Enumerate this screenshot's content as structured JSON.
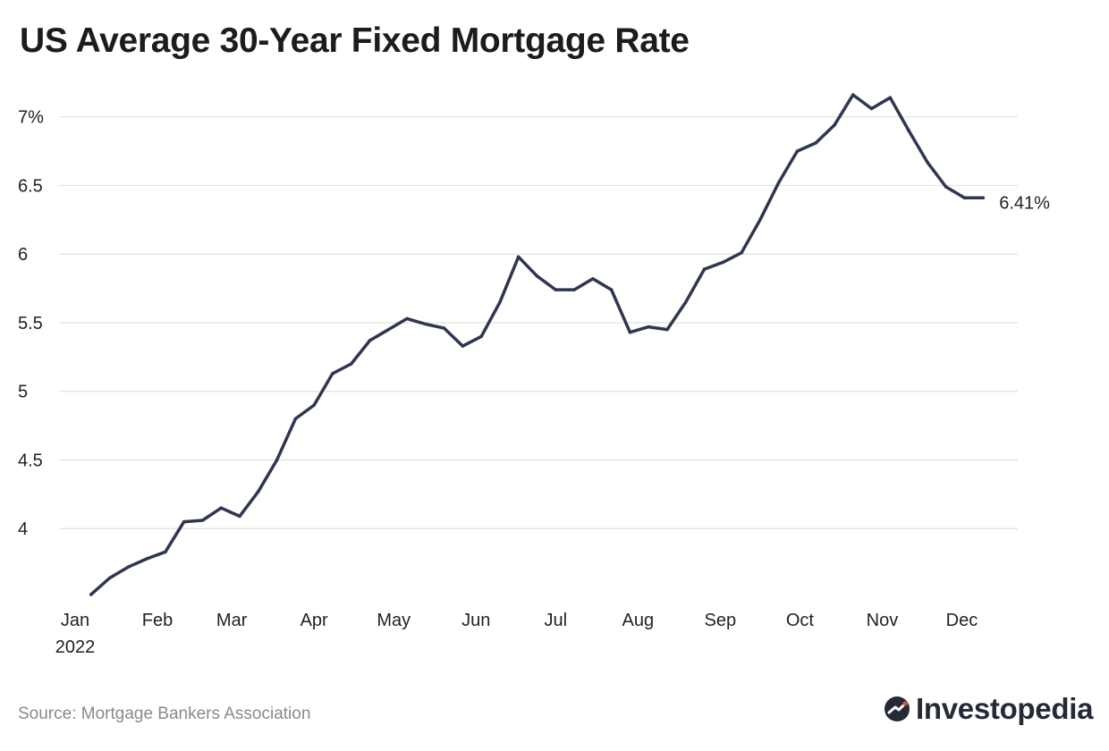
{
  "title": "US Average 30-Year Fixed Mortgage Rate",
  "source": "Source: Mortgage Bankers Association",
  "brand": {
    "name": "Investopedia",
    "icon": "investopedia-logo-icon"
  },
  "colors": {
    "line": "#2f3650",
    "grid": "#e1e1e1",
    "text": "#222222",
    "source": "#8a8a8a"
  },
  "chart_data": {
    "type": "line",
    "title": "US Average 30-Year Fixed Mortgage Rate",
    "xlabel": "",
    "ylabel": "",
    "ylim": [
      3.5,
      7.2
    ],
    "yticks": [
      {
        "value": 4,
        "label": "4"
      },
      {
        "value": 4.5,
        "label": "4.5"
      },
      {
        "value": 5,
        "label": "5"
      },
      {
        "value": 5.5,
        "label": "5.5"
      },
      {
        "value": 6,
        "label": "6"
      },
      {
        "value": 6.5,
        "label": "6.5"
      },
      {
        "value": 7,
        "label": "7%"
      }
    ],
    "xlim": [
      "2022-01-01",
      "2022-12-16"
    ],
    "xticks": [
      {
        "date": "2022-01-01",
        "label": "Jan",
        "sublabel": "2022"
      },
      {
        "date": "2022-02-01",
        "label": "Feb"
      },
      {
        "date": "2022-03-01",
        "label": "Mar"
      },
      {
        "date": "2022-04-01",
        "label": "Apr"
      },
      {
        "date": "2022-05-01",
        "label": "May"
      },
      {
        "date": "2022-06-01",
        "label": "Jun"
      },
      {
        "date": "2022-07-01",
        "label": "Jul"
      },
      {
        "date": "2022-08-01",
        "label": "Aug"
      },
      {
        "date": "2022-09-01",
        "label": "Sep"
      },
      {
        "date": "2022-10-01",
        "label": "Oct"
      },
      {
        "date": "2022-11-01",
        "label": "Nov"
      },
      {
        "date": "2022-12-01",
        "label": "Dec"
      }
    ],
    "grid": true,
    "end_label": "6.41%",
    "series": [
      {
        "x": [
          "2022-01-07",
          "2022-01-14",
          "2022-01-21",
          "2022-01-28",
          "2022-02-04",
          "2022-02-11",
          "2022-02-18",
          "2022-02-25",
          "2022-03-04",
          "2022-03-11",
          "2022-03-18",
          "2022-03-25",
          "2022-04-01",
          "2022-04-08",
          "2022-04-15",
          "2022-04-22",
          "2022-04-29",
          "2022-05-06",
          "2022-05-13",
          "2022-05-20",
          "2022-05-27",
          "2022-06-03",
          "2022-06-10",
          "2022-06-17",
          "2022-06-24",
          "2022-07-01",
          "2022-07-08",
          "2022-07-15",
          "2022-07-22",
          "2022-07-29",
          "2022-08-05",
          "2022-08-12",
          "2022-08-19",
          "2022-08-26",
          "2022-09-02",
          "2022-09-09",
          "2022-09-16",
          "2022-09-23",
          "2022-09-30",
          "2022-10-07",
          "2022-10-14",
          "2022-10-21",
          "2022-10-28",
          "2022-11-04",
          "2022-11-11",
          "2022-11-18",
          "2022-11-25",
          "2022-12-02",
          "2022-12-09"
        ],
        "values": [
          3.52,
          3.64,
          3.72,
          3.78,
          3.83,
          4.05,
          4.06,
          4.15,
          4.09,
          4.27,
          4.5,
          4.8,
          4.9,
          5.13,
          5.2,
          5.37,
          5.45,
          5.53,
          5.49,
          5.46,
          5.33,
          5.4,
          5.65,
          5.98,
          5.84,
          5.74,
          5.74,
          5.82,
          5.74,
          5.43,
          5.47,
          5.45,
          5.65,
          5.89,
          5.94,
          6.01,
          6.25,
          6.52,
          6.75,
          6.81,
          6.94,
          7.16,
          7.06,
          7.14,
          6.9,
          6.67,
          6.49,
          6.41,
          6.41
        ]
      }
    ]
  }
}
